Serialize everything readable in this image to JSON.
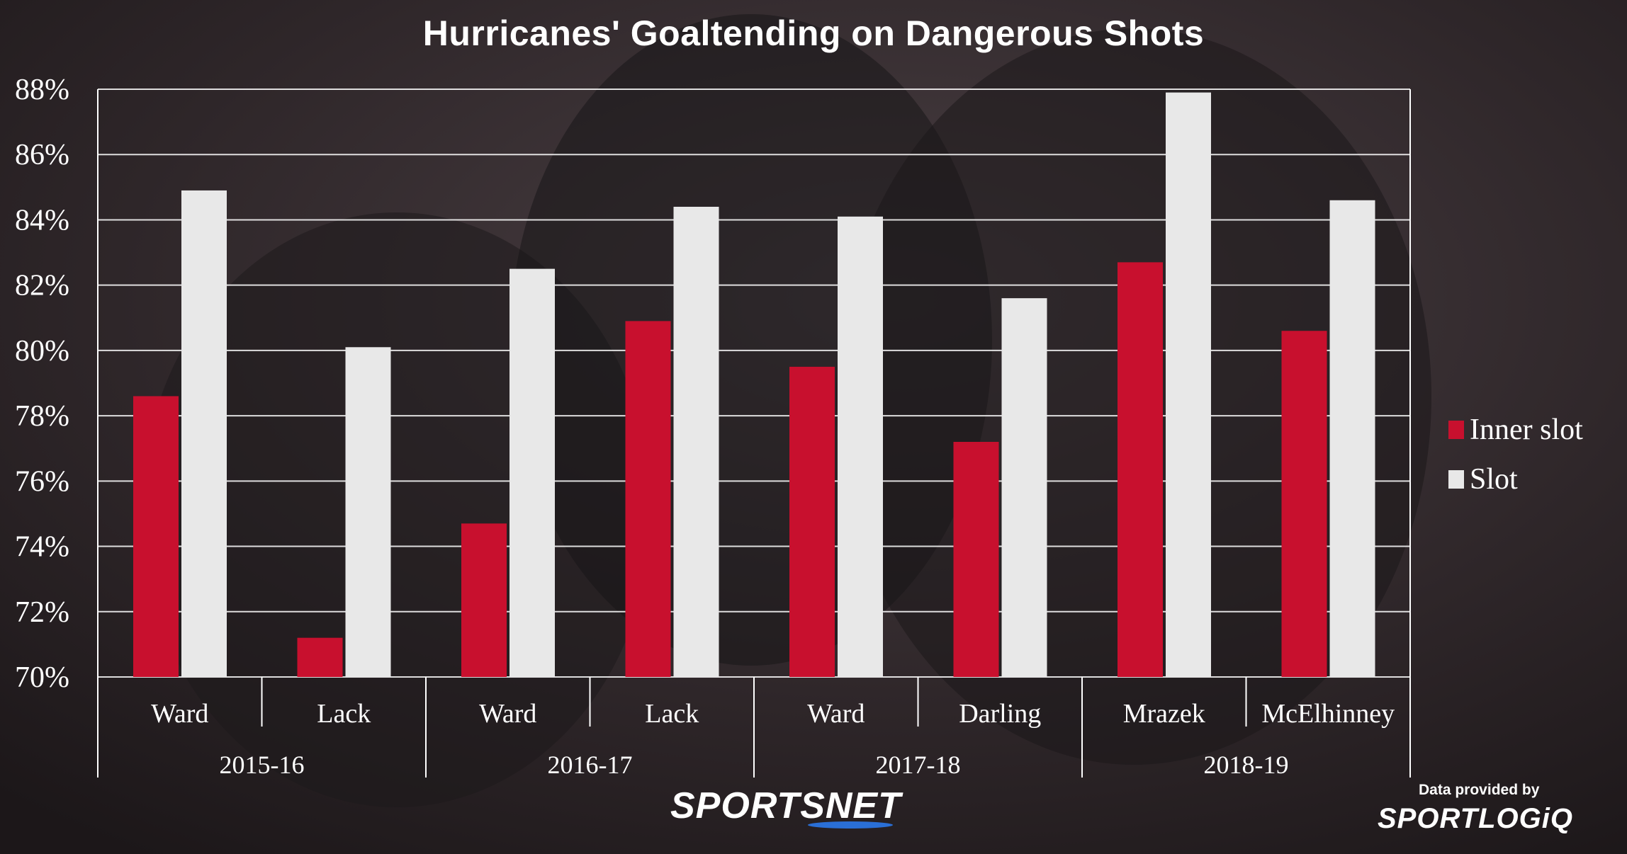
{
  "chart_data": {
    "type": "bar",
    "title": "Hurricanes' Goaltending on Dangerous Shots",
    "xlabel": "",
    "ylabel": "",
    "ylim": [
      70,
      88
    ],
    "y_ticks": [
      "70%",
      "72%",
      "74%",
      "76%",
      "78%",
      "80%",
      "82%",
      "84%",
      "86%",
      "88%"
    ],
    "y_tick_values": [
      70,
      72,
      74,
      76,
      78,
      80,
      82,
      84,
      86,
      88
    ],
    "grid": true,
    "legend_position": "right",
    "categories": [
      "Ward",
      "Lack",
      "Ward",
      "Lack",
      "Ward",
      "Darling",
      "Mrazek",
      "McElhinney"
    ],
    "groups": [
      {
        "label": "2015-16",
        "count": 2
      },
      {
        "label": "2016-17",
        "count": 2
      },
      {
        "label": "2017-18",
        "count": 2
      },
      {
        "label": "2018-19",
        "count": 2
      }
    ],
    "series": [
      {
        "name": "Inner slot",
        "color": "#c8102e",
        "values": [
          78.6,
          71.2,
          74.7,
          80.9,
          79.5,
          77.2,
          82.7,
          80.6
        ]
      },
      {
        "name": "Slot",
        "color": "#e8e8e8",
        "values": [
          84.9,
          80.1,
          82.5,
          84.4,
          84.1,
          81.6,
          87.9,
          84.6
        ]
      }
    ]
  },
  "footer": {
    "brand": "SPORTSNET",
    "credit_text": "Data provided by",
    "credit_brand": "SPORTLOGiQ"
  },
  "colors": {
    "accent_red": "#c8102e",
    "bar_light": "#e8e8e8",
    "background": "#2a2426"
  }
}
